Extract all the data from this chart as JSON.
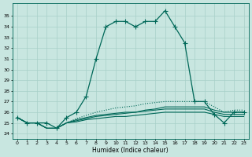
{
  "xlabel": "Humidex (Indice chaleur)",
  "background_color": "#c8e6e0",
  "grid_color": "#a8d0c8",
  "line_color": "#006858",
  "xlim": [
    -0.5,
    23.5
  ],
  "ylim": [
    23.5,
    36.2
  ],
  "xticks": [
    0,
    1,
    2,
    3,
    4,
    5,
    6,
    7,
    8,
    9,
    10,
    11,
    12,
    13,
    14,
    15,
    16,
    17,
    18,
    19,
    20,
    21,
    22,
    23
  ],
  "yticks": [
    24,
    25,
    26,
    27,
    28,
    29,
    30,
    31,
    32,
    33,
    34,
    35
  ],
  "main_series": [
    25.5,
    25.0,
    25.0,
    25.0,
    24.5,
    25.5,
    26.0,
    27.5,
    31.0,
    34.0,
    34.5,
    34.5,
    34.0,
    34.5,
    34.5,
    35.5,
    34.0,
    32.5,
    27.0,
    27.0,
    25.8,
    25.0,
    26.0,
    26.0
  ],
  "flat_series": [
    [
      25.5,
      25.0,
      25.0,
      24.5,
      24.5,
      25.0,
      25.3,
      25.5,
      25.7,
      25.8,
      25.9,
      26.0,
      26.0,
      26.2,
      26.3,
      26.5,
      26.5,
      26.5,
      26.5,
      26.5,
      26.2,
      26.0,
      26.0,
      26.0
    ],
    [
      25.5,
      25.0,
      25.0,
      24.5,
      24.5,
      25.0,
      25.2,
      25.4,
      25.6,
      25.7,
      25.8,
      25.9,
      26.0,
      26.1,
      26.2,
      26.3,
      26.3,
      26.3,
      26.3,
      26.3,
      26.0,
      25.8,
      25.8,
      25.8
    ],
    [
      25.5,
      25.0,
      25.0,
      24.5,
      24.5,
      25.0,
      25.1,
      25.3,
      25.4,
      25.5,
      25.6,
      25.6,
      25.7,
      25.8,
      25.9,
      26.0,
      26.0,
      26.0,
      26.0,
      26.0,
      25.8,
      25.6,
      25.6,
      25.6
    ]
  ],
  "dotted_series": [
    25.5,
    25.0,
    25.0,
    24.5,
    24.5,
    25.0,
    25.4,
    25.7,
    26.0,
    26.2,
    26.4,
    26.5,
    26.6,
    26.8,
    26.9,
    27.0,
    27.0,
    27.0,
    27.0,
    27.0,
    26.5,
    26.0,
    26.2,
    26.2
  ]
}
